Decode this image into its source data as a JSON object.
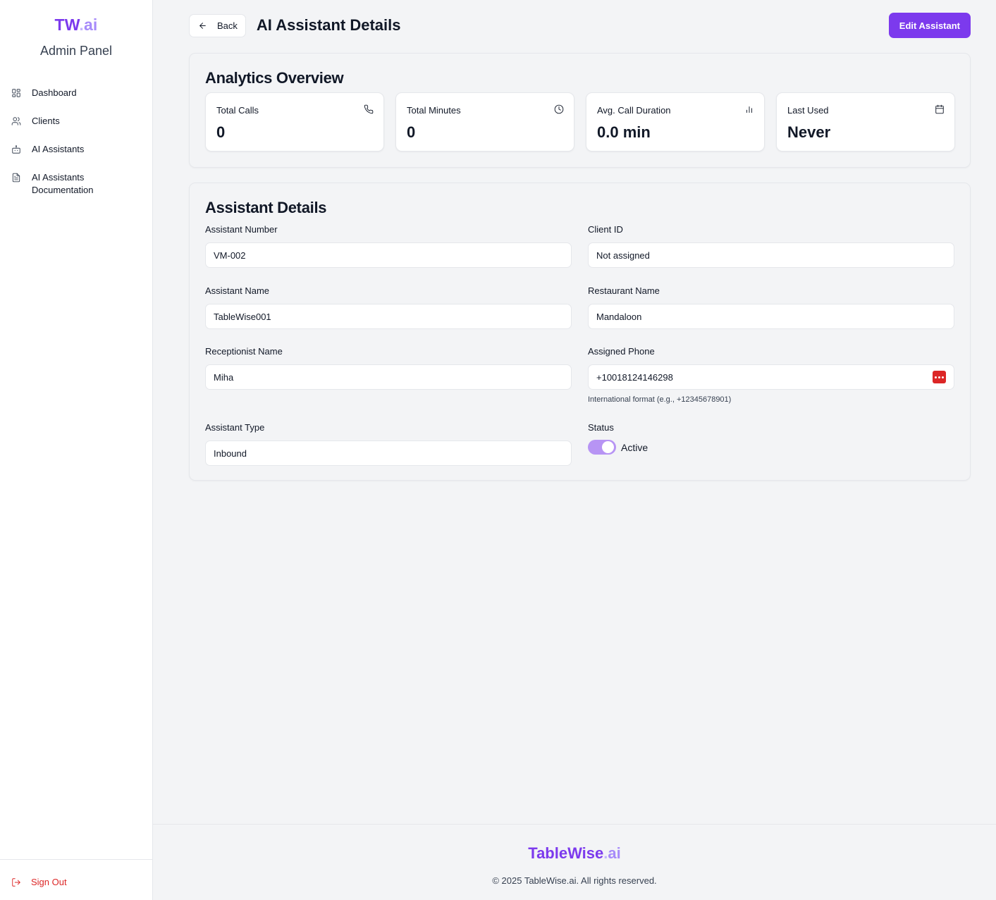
{
  "sidebar": {
    "brand": {
      "main": "TW",
      "dot": ".",
      "suffix": "ai"
    },
    "subtitle": "Admin Panel",
    "items": [
      {
        "label": "Dashboard",
        "icon": "dashboard-grid-icon"
      },
      {
        "label": "Clients",
        "icon": "users-icon"
      },
      {
        "label": "AI Assistants",
        "icon": "bot-icon"
      },
      {
        "label": "AI Assistants Documentation",
        "icon": "document-icon"
      }
    ],
    "signout": {
      "label": "Sign Out",
      "icon": "logout-icon"
    }
  },
  "header": {
    "back_label": "Back",
    "title": "AI Assistant Details",
    "edit_label": "Edit Assistant"
  },
  "analytics": {
    "title": "Analytics Overview",
    "stats": [
      {
        "label": "Total Calls",
        "value": "0",
        "icon": "phone-icon"
      },
      {
        "label": "Total Minutes",
        "value": "0",
        "icon": "clock-icon"
      },
      {
        "label": "Avg. Call Duration",
        "value": "0.0 min",
        "icon": "bar-chart-icon"
      },
      {
        "label": "Last Used",
        "value": "Never",
        "icon": "calendar-icon"
      }
    ]
  },
  "details": {
    "title": "Assistant Details",
    "assistant_number": {
      "label": "Assistant Number",
      "value": "VM-002"
    },
    "client_id": {
      "label": "Client ID",
      "value": "Not assigned"
    },
    "assistant_name": {
      "label": "Assistant Name",
      "value": "TableWise001"
    },
    "restaurant_name": {
      "label": "Restaurant Name",
      "value": "Mandaloon"
    },
    "receptionist_name": {
      "label": "Receptionist Name",
      "value": "Miha"
    },
    "assigned_phone": {
      "label": "Assigned Phone",
      "value": "+10018124146298",
      "hint": "International format (e.g., +12345678901)"
    },
    "assistant_type": {
      "label": "Assistant Type",
      "value": "Inbound"
    },
    "status": {
      "label": "Status",
      "value": "Active",
      "enabled": true
    }
  },
  "footer": {
    "logo_main": "TableWise",
    "logo_dot": ".",
    "logo_suffix": "ai",
    "copyright": "© 2025 TableWise.ai. All rights reserved."
  },
  "colors": {
    "accent": "#7c3aed",
    "accent_light": "#a78bfa",
    "danger": "#dc2626",
    "toggle_on": "#b794f4"
  }
}
